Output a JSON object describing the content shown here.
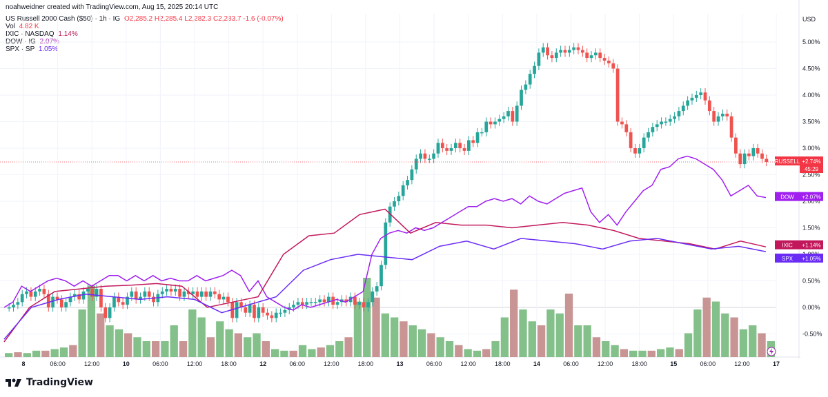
{
  "attribution": "noahweidner created with TradingView.com, Aug 15, 2025 20:14 UTC",
  "legend": {
    "symbol": "US Russell 2000 Cash ($50) · 1h · IG",
    "ohlc": "O2,285.2  H2,285.4  L2,282.3  C2,283.7  -1.6 (-0.07%)",
    "vol_label": "Vol",
    "vol_value": "4.82 K",
    "ixic_label": "IXIC · NASDAQ",
    "ixic_value": "1.14%",
    "dow_label": "DOW · IG",
    "dow_value": "2.07%",
    "spx_label": "SPX · SP",
    "spx_value": "1.05%"
  },
  "brand": "TradingView",
  "colors": {
    "up": "#26a69a",
    "down": "#ef5350",
    "dow": "#a020f0",
    "ixic": "#c2185b",
    "spx": "#6a2cf5",
    "vol_up": "#84c08a",
    "vol_down": "#c99494"
  },
  "chart_data": {
    "type": "candlestick",
    "y_axis_unit": "USD",
    "y_ticks": [
      "5.00%",
      "4.50%",
      "4.00%",
      "3.50%",
      "3.00%",
      "2.50%",
      "2.00%",
      "1.50%",
      "1.00%",
      "0.50%",
      "0.00%",
      "-0.50%"
    ],
    "y_range_percent": [
      -0.9,
      5.4
    ],
    "x_ticks": [
      "8",
      "06:00",
      "12:00",
      "10",
      "06:00",
      "12:00",
      "18:00",
      "12",
      "06:00",
      "12:00",
      "18:00",
      "13",
      "06:00",
      "12:00",
      "18:00",
      "14",
      "06:00",
      "12:00",
      "18:00",
      "15",
      "06:00",
      "12:00",
      "17"
    ],
    "labels": {
      "russell": {
        "name": "RUSSELL",
        "value": "+2.74%",
        "sub": "45:29"
      },
      "dow": {
        "name": "DOW",
        "value": "+2.07%"
      },
      "ixic": {
        "name": "IXIC",
        "value": "+1.14%"
      },
      "spx": {
        "name": "SPX",
        "value": "+1.05%"
      }
    },
    "russell_close_percent": [
      0.0,
      0.05,
      0.1,
      0.25,
      0.3,
      0.2,
      0.3,
      0.35,
      0.25,
      0.0,
      0.2,
      0.15,
      0.0,
      0.1,
      0.2,
      0.25,
      0.15,
      0.3,
      0.35,
      0.2,
      0.35,
      0.0,
      -0.2,
      0.0,
      0.2,
      0.1,
      0.05,
      0.2,
      0.3,
      0.15,
      0.2,
      0.3,
      0.2,
      0.1,
      0.25,
      0.3,
      0.35,
      0.3,
      0.35,
      0.2,
      0.3,
      0.25,
      0.3,
      0.2,
      0.3,
      0.2,
      0.3,
      0.25,
      0.15,
      0.2,
      0.1,
      -0.2,
      0.1,
      0.0,
      -0.1,
      0.05,
      -0.2,
      0.0,
      -0.1,
      -0.15,
      -0.2,
      -0.1,
      -0.1,
      -0.05,
      0.0,
      0.05,
      0.1,
      0.05,
      0.1,
      0.1,
      0.1,
      0.15,
      0.1,
      0.2,
      0.05,
      0.1,
      0.15,
      0.1,
      0.2,
      0.05,
      0.1,
      0.0,
      0.1,
      0.3,
      0.4,
      0.8,
      1.6,
      1.9,
      2.0,
      2.1,
      2.3,
      2.4,
      2.6,
      2.8,
      2.9,
      2.8,
      2.8,
      2.9,
      3.1,
      3.0,
      2.95,
      3.0,
      3.1,
      3.0,
      2.95,
      3.15,
      3.1,
      3.3,
      3.3,
      3.5,
      3.45,
      3.5,
      3.55,
      3.6,
      3.7,
      3.5,
      3.8,
      4.1,
      4.2,
      4.4,
      4.55,
      4.8,
      4.9,
      4.75,
      4.7,
      4.8,
      4.85,
      4.8,
      4.85,
      4.9,
      4.85,
      4.8,
      4.7,
      4.75,
      4.8,
      4.7,
      4.65,
      4.6,
      4.5,
      3.5,
      3.45,
      3.3,
      3.0,
      2.9,
      3.0,
      3.2,
      3.3,
      3.4,
      3.45,
      3.5,
      3.5,
      3.55,
      3.6,
      3.7,
      3.8,
      3.9,
      3.95,
      4.0,
      4.05,
      3.9,
      3.7,
      3.5,
      3.6,
      3.65,
      3.6,
      3.2,
      2.9,
      2.7,
      2.9,
      2.85,
      3.0,
      2.9,
      2.8,
      2.74
    ],
    "dow_percent": [
      0.0,
      0.1,
      0.4,
      0.3,
      0.4,
      0.5,
      0.55,
      0.5,
      0.4,
      0.5,
      0.4,
      0.5,
      0.6,
      0.6,
      0.5,
      0.6,
      0.5,
      0.6,
      0.5,
      0.55,
      0.5,
      0.5,
      0.6,
      0.5,
      0.55,
      0.6,
      0.7,
      0.6,
      0.3,
      0.5,
      0.2,
      0.1,
      0.0,
      -0.05,
      0.05,
      0.0,
      0.05,
      0.1,
      0.15,
      0.1,
      0.2,
      0.3,
      1.0,
      1.3,
      1.4,
      1.45,
      1.4,
      1.5,
      1.45,
      1.5,
      1.6,
      1.7,
      1.8,
      1.9,
      1.9,
      2.0,
      2.05,
      2.0,
      2.05,
      1.95,
      2.1,
      2.0,
      1.95,
      2.05,
      2.15,
      2.2,
      2.25,
      1.8,
      1.6,
      1.75,
      1.55,
      1.8,
      2.0,
      2.2,
      2.3,
      2.6,
      2.65,
      2.8,
      2.85,
      2.8,
      2.7,
      2.6,
      2.4,
      2.1,
      2.2,
      2.3,
      2.1,
      2.07
    ],
    "ixic_percent": [
      -0.65,
      0.0,
      0.3,
      0.35,
      0.4,
      0.42,
      0.45,
      0.4,
      0.0,
      0.1,
      0.2,
      1.0,
      1.35,
      1.4,
      1.75,
      1.85,
      1.4,
      1.6,
      1.55,
      1.55,
      1.5,
      1.55,
      1.6,
      1.55,
      1.45,
      1.3,
      1.25,
      1.2,
      1.1,
      1.25,
      1.14
    ],
    "spx_percent": [
      -0.6,
      0.0,
      0.15,
      0.25,
      0.2,
      0.15,
      0.2,
      0.15,
      -0.1,
      0.05,
      0.2,
      0.7,
      0.9,
      1.0,
      0.95,
      0.9,
      1.15,
      1.25,
      1.1,
      1.3,
      1.25,
      1.2,
      1.1,
      1.25,
      1.3,
      1.2,
      1.1,
      1.15,
      1.05
    ],
    "volume_relative": [
      0.05,
      0.06,
      0.05,
      0.08,
      0.08,
      0.1,
      0.12,
      0.15,
      0.6,
      0.9,
      0.55,
      0.4,
      0.35,
      0.3,
      0.25,
      0.2,
      0.2,
      0.2,
      0.4,
      0.2,
      0.6,
      0.5,
      0.25,
      0.45,
      0.35,
      0.3,
      0.25,
      0.3,
      0.2,
      0.1,
      0.08,
      0.08,
      0.15,
      0.1,
      0.12,
      0.15,
      0.2,
      0.25,
      0.7,
      1.0,
      0.75,
      0.55,
      0.5,
      0.45,
      0.4,
      0.35,
      0.3,
      0.25,
      0.2,
      0.15,
      0.1,
      0.08,
      0.1,
      0.2,
      0.5,
      0.85,
      0.6,
      0.45,
      0.4,
      0.6,
      0.55,
      0.8,
      0.4,
      0.4,
      0.25,
      0.2,
      0.15,
      0.1,
      0.08,
      0.08,
      0.08,
      0.1,
      0.12,
      0.1,
      0.3,
      0.6,
      0.75,
      0.7,
      0.55,
      0.5,
      0.35,
      0.4,
      0.3,
      0.2
    ]
  }
}
